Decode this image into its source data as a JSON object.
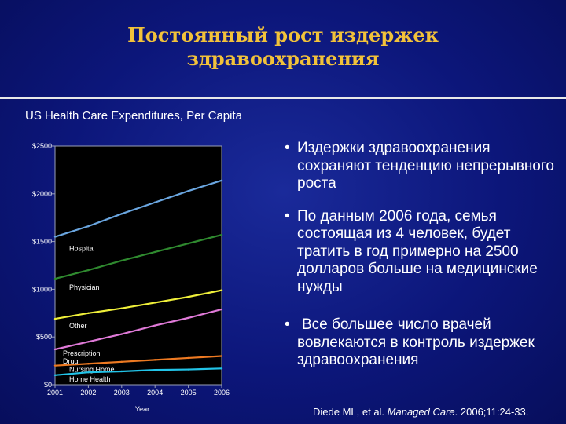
{
  "slide": {
    "title_line1": "Постоянный рост издержек",
    "title_line2": "здравоохранения"
  },
  "bullets": [
    "Издержки здравоохранения сохраняют тенденцию непрерывного роста",
    "По данным 2006 года, семья состоящая из 4 человек, будет тратить в год примерно на 2500 долларов больше на медицинские нужды",
    "Все большее число врачей вовлекаются в контроль издержек здравоохранения"
  ],
  "bullet_symbol": "•",
  "citation": {
    "prefix": "Diede ML, et al. ",
    "journal": "Managed Care",
    "suffix": ". 2006;11:24-33."
  },
  "colors": {
    "background": "#0c167a",
    "title": "#f2c23a",
    "text": "#ffffff"
  },
  "chart_data": {
    "type": "line",
    "title": "US Health Care Expenditures, Per Capita",
    "xlabel": "Year",
    "ylabel": "",
    "x": [
      2001,
      2002,
      2003,
      2004,
      2005,
      2006
    ],
    "x_tick_labels": [
      "2001",
      "2002",
      "2003",
      "2004",
      "2005",
      "2006"
    ],
    "y_tick_values": [
      0,
      500,
      1000,
      1500,
      2000,
      2500
    ],
    "y_tick_labels": [
      "$0",
      "$500",
      "$1000",
      "$1500",
      "$2000",
      "$2500"
    ],
    "xlim": [
      2001,
      2006
    ],
    "ylim": [
      0,
      2500
    ],
    "grid": false,
    "series": [
      {
        "name": "Hospital",
        "color": "#6aa6e0",
        "values": [
          1550,
          1660,
          1790,
          1910,
          2030,
          2140
        ]
      },
      {
        "name": "Physician",
        "color": "#2f8a2f",
        "values": [
          1110,
          1200,
          1300,
          1390,
          1480,
          1570
        ]
      },
      {
        "name": "Other",
        "color": "#f0f03a",
        "values": [
          690,
          750,
          800,
          860,
          920,
          990
        ]
      },
      {
        "name": "Prescription Drug",
        "color": "#e07ad8",
        "values": [
          370,
          450,
          530,
          620,
          700,
          790
        ]
      },
      {
        "name": "Nursing Home",
        "color": "#ee7a22",
        "values": [
          200,
          220,
          240,
          260,
          280,
          300
        ]
      },
      {
        "name": "Home Health",
        "color": "#22c4e8",
        "values": [
          100,
          130,
          140,
          155,
          160,
          170
        ]
      }
    ]
  }
}
